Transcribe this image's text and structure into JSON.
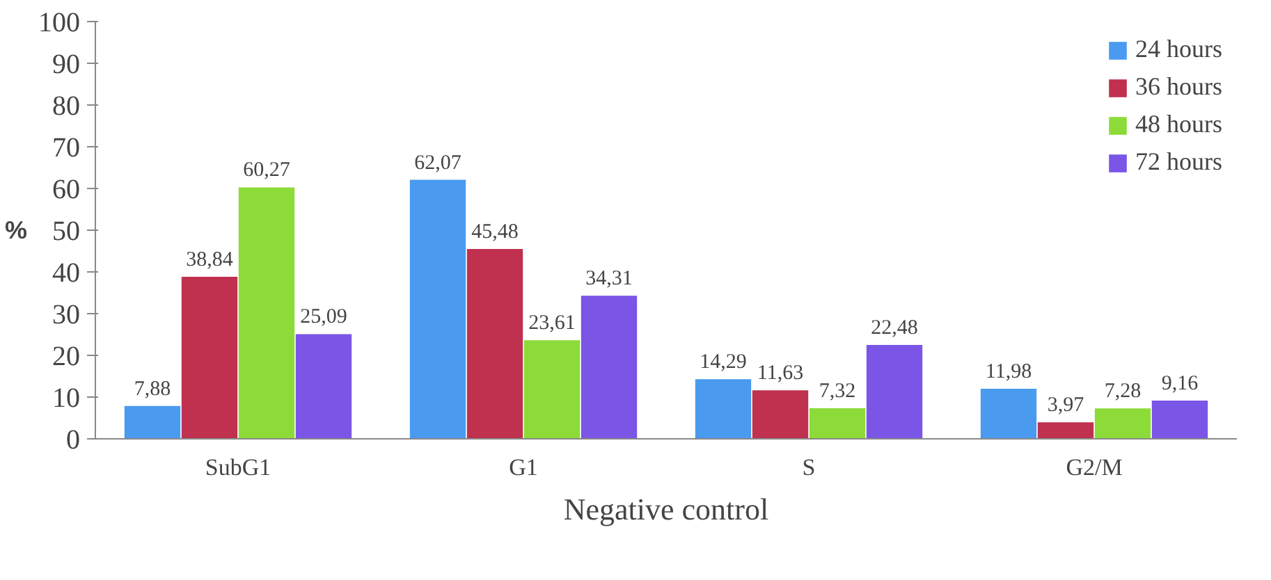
{
  "chart_data": {
    "type": "bar",
    "xlabel": "Negative control",
    "ylabel": "%",
    "categories": [
      "SubG1",
      "G1",
      "S",
      "G2/M"
    ],
    "series": [
      {
        "name": "24 hours",
        "color": "#4a9bf0",
        "values": [
          7.88,
          62.07,
          14.29,
          11.98
        ],
        "value_labels": [
          "7,88",
          "62,07",
          "14,29",
          "11,98"
        ]
      },
      {
        "name": "36 hours",
        "color": "#c0304f",
        "values": [
          38.84,
          45.48,
          11.63,
          3.97
        ],
        "value_labels": [
          "38,84",
          "45,48",
          "11,63",
          "3,97"
        ]
      },
      {
        "name": "48 hours",
        "color": "#8ddb38",
        "values": [
          60.27,
          23.61,
          7.32,
          7.28
        ],
        "value_labels": [
          "60,27",
          "23,61",
          "7,32",
          "7,28"
        ]
      },
      {
        "name": "72 hours",
        "color": "#7a55e6",
        "values": [
          25.09,
          34.31,
          22.48,
          9.16
        ],
        "value_labels": [
          "25,09",
          "34,31",
          "22,48",
          "9,16"
        ]
      }
    ],
    "ylim": [
      0,
      100
    ],
    "yticks": [
      0,
      10,
      20,
      30,
      40,
      50,
      60,
      70,
      80,
      90,
      100
    ],
    "grid": false,
    "legend": "top right"
  }
}
